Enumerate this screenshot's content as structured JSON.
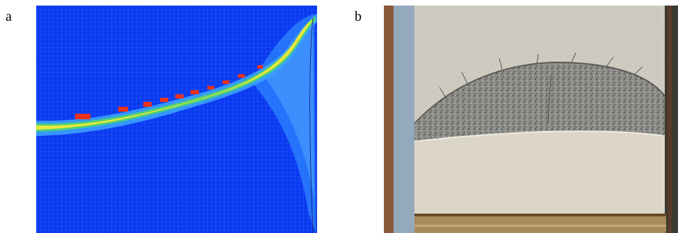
{
  "figure": {
    "panels": [
      {
        "label": "a",
        "description": ""
      },
      {
        "label": "b",
        "description": ""
      }
    ]
  },
  "colors": {
    "mesh_background": "#0a3af0",
    "mesh_line": "#3a6cff",
    "band_outer": "#5ac8ff",
    "band_mid": "#4cd07a",
    "band_inner": "#e8e83a",
    "hot": "#e8321e",
    "concrete_light": "#cfcac0",
    "concrete_dark": "#7a7a78",
    "wood_left": "#8b5a3c",
    "steel_blue": "#9fb2c4"
  }
}
